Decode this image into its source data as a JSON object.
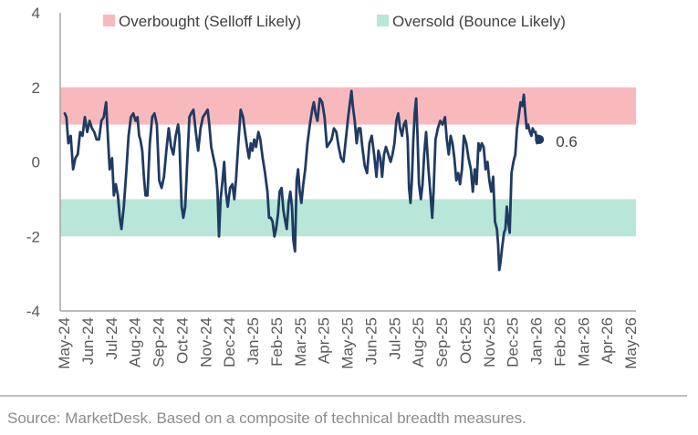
{
  "chart_data": {
    "type": "line",
    "title": "",
    "xlabel": "",
    "ylabel": "",
    "ylim": [
      -4,
      4
    ],
    "yticks": [
      4,
      2,
      0,
      -2,
      -4
    ],
    "x_categories": [
      "May-24",
      "Jun-24",
      "Jul-24",
      "Aug-24",
      "Sep-24",
      "Oct-24",
      "Nov-24",
      "Dec-24",
      "Jan-25",
      "Feb-25",
      "Mar-25",
      "Apr-25",
      "May-25",
      "Jun-25",
      "Jul-25",
      "Aug-25",
      "Sep-25",
      "Oct-25",
      "Nov-25",
      "Dec-25",
      "Jan-26",
      "Feb-26",
      "Mar-26",
      "Apr-26",
      "May-26"
    ],
    "bands": [
      {
        "name": "Overbought (Selloff Likely)",
        "from": 1,
        "to": 2,
        "color": "#f8b9bd"
      },
      {
        "name": "Oversold (Bounce Likely)",
        "from": -2,
        "to": -1,
        "color": "#b8e6d9"
      }
    ],
    "legend_position": "top",
    "series_color": "#1f3b63",
    "end_value_label": "0.6",
    "series": [
      {
        "values": [
          [
            0.0,
            1.3
          ],
          [
            0.07,
            1.2
          ],
          [
            0.15,
            0.5
          ],
          [
            0.25,
            0.7
          ],
          [
            0.35,
            -0.2
          ],
          [
            0.45,
            0.1
          ],
          [
            0.55,
            0.2
          ],
          [
            0.65,
            0.8
          ],
          [
            0.75,
            0.7
          ],
          [
            0.85,
            1.2
          ],
          [
            0.95,
            0.8
          ],
          [
            1.05,
            1.1
          ],
          [
            1.15,
            0.9
          ],
          [
            1.25,
            0.8
          ],
          [
            1.35,
            0.6
          ],
          [
            1.45,
            0.6
          ],
          [
            1.55,
            1.1
          ],
          [
            1.65,
            1.2
          ],
          [
            1.75,
            1.6
          ],
          [
            1.83,
            0.6
          ],
          [
            1.9,
            -0.2
          ],
          [
            2.0,
            0.1
          ],
          [
            2.08,
            -0.9
          ],
          [
            2.16,
            -0.6
          ],
          [
            2.25,
            -0.9
          ],
          [
            2.33,
            -1.5
          ],
          [
            2.4,
            -1.8
          ],
          [
            2.5,
            -1.2
          ],
          [
            2.6,
            -0.3
          ],
          [
            2.7,
            0.7
          ],
          [
            2.8,
            1.2
          ],
          [
            2.9,
            1.3
          ],
          [
            3.0,
            1.1
          ],
          [
            3.08,
            1.2
          ],
          [
            3.15,
            0.7
          ],
          [
            3.2,
            0.6
          ],
          [
            3.28,
            0.3
          ],
          [
            3.35,
            -0.4
          ],
          [
            3.42,
            -0.9
          ],
          [
            3.5,
            -0.9
          ],
          [
            3.6,
            0.5
          ],
          [
            3.7,
            1.2
          ],
          [
            3.8,
            1.3
          ],
          [
            3.9,
            1.0
          ],
          [
            4.0,
            -0.5
          ],
          [
            4.1,
            -0.7
          ],
          [
            4.2,
            -0.4
          ],
          [
            4.3,
            0.3
          ],
          [
            4.4,
            0.9
          ],
          [
            4.5,
            0.4
          ],
          [
            4.6,
            0.2
          ],
          [
            4.7,
            0.7
          ],
          [
            4.8,
            1.0
          ],
          [
            4.85,
            0.7
          ],
          [
            4.9,
            -0.3
          ],
          [
            4.95,
            -1.2
          ],
          [
            5.02,
            -1.5
          ],
          [
            5.1,
            -1.2
          ],
          [
            5.2,
            0.2
          ],
          [
            5.28,
            1.2
          ],
          [
            5.35,
            1.3
          ],
          [
            5.45,
            1.4
          ],
          [
            5.55,
            0.8
          ],
          [
            5.65,
            0.3
          ],
          [
            5.75,
            0.9
          ],
          [
            5.85,
            1.2
          ],
          [
            5.95,
            1.3
          ],
          [
            6.05,
            1.4
          ],
          [
            6.12,
            1.0
          ],
          [
            6.2,
            0.4
          ],
          [
            6.3,
            0.1
          ],
          [
            6.4,
            -0.2
          ],
          [
            6.47,
            -0.8
          ],
          [
            6.53,
            -2.0
          ],
          [
            6.6,
            -1.0
          ],
          [
            6.68,
            -0.5
          ],
          [
            6.75,
            0.0
          ],
          [
            6.82,
            -0.8
          ],
          [
            6.9,
            -1.2
          ],
          [
            7.0,
            -0.7
          ],
          [
            7.1,
            -0.6
          ],
          [
            7.18,
            -1.0
          ],
          [
            7.25,
            -0.5
          ],
          [
            7.35,
            0.5
          ],
          [
            7.45,
            1.4
          ],
          [
            7.55,
            1.2
          ],
          [
            7.65,
            0.7
          ],
          [
            7.72,
            0.4
          ],
          [
            7.8,
            0.1
          ],
          [
            7.88,
            0.5
          ],
          [
            7.95,
            0.3
          ],
          [
            8.02,
            0.6
          ],
          [
            8.1,
            0.4
          ],
          [
            8.2,
            0.8
          ],
          [
            8.28,
            0.6
          ],
          [
            8.38,
            0.1
          ],
          [
            8.48,
            -0.3
          ],
          [
            8.58,
            -0.8
          ],
          [
            8.65,
            -1.5
          ],
          [
            8.72,
            -1.5
          ],
          [
            8.8,
            -1.6
          ],
          [
            8.88,
            -2.0
          ],
          [
            8.95,
            -1.8
          ],
          [
            9.03,
            -1.4
          ],
          [
            9.1,
            -0.8
          ],
          [
            9.18,
            -0.7
          ],
          [
            9.26,
            -1.3
          ],
          [
            9.34,
            -1.6
          ],
          [
            9.4,
            -1.8
          ],
          [
            9.48,
            -1.1
          ],
          [
            9.55,
            -0.8
          ],
          [
            9.62,
            -1.2
          ],
          [
            9.68,
            -2.1
          ],
          [
            9.75,
            -2.4
          ],
          [
            9.82,
            -0.5
          ],
          [
            9.88,
            -0.2
          ],
          [
            9.95,
            -0.8
          ],
          [
            10.02,
            -1.1
          ],
          [
            10.1,
            -0.6
          ],
          [
            10.18,
            -0.2
          ],
          [
            10.28,
            0.5
          ],
          [
            10.38,
            1.0
          ],
          [
            10.48,
            1.4
          ],
          [
            10.55,
            1.6
          ],
          [
            10.62,
            1.3
          ],
          [
            10.7,
            1.1
          ],
          [
            10.8,
            1.7
          ],
          [
            10.9,
            1.6
          ],
          [
            11.0,
            1.2
          ],
          [
            11.1,
            0.4
          ],
          [
            11.2,
            0.5
          ],
          [
            11.3,
            0.6
          ],
          [
            11.4,
            0.9
          ],
          [
            11.5,
            0.8
          ],
          [
            11.6,
            0.4
          ],
          [
            11.7,
            0.1
          ],
          [
            11.8,
            0.0
          ],
          [
            11.9,
            0.6
          ],
          [
            12.0,
            1.2
          ],
          [
            12.08,
            1.6
          ],
          [
            12.14,
            1.9
          ],
          [
            12.2,
            1.5
          ],
          [
            12.28,
            1.1
          ],
          [
            12.36,
            0.5
          ],
          [
            12.44,
            0.9
          ],
          [
            12.52,
            0.9
          ],
          [
            12.6,
            0.4
          ],
          [
            12.7,
            -0.1
          ],
          [
            12.8,
            -0.3
          ],
          [
            12.9,
            0.5
          ],
          [
            13.0,
            0.7
          ],
          [
            13.1,
            0.2
          ],
          [
            13.2,
            -0.4
          ],
          [
            13.28,
            0.3
          ],
          [
            13.36,
            0.1
          ],
          [
            13.44,
            -0.4
          ],
          [
            13.52,
            0.2
          ],
          [
            13.6,
            0.4
          ],
          [
            13.7,
            0.2
          ],
          [
            13.8,
            0.0
          ],
          [
            13.88,
            0.2
          ],
          [
            13.96,
            0.5
          ],
          [
            14.04,
            1.1
          ],
          [
            14.12,
            1.3
          ],
          [
            14.2,
            0.9
          ],
          [
            14.28,
            0.7
          ],
          [
            14.36,
            1.0
          ],
          [
            14.44,
            1.1
          ],
          [
            14.52,
            0.6
          ],
          [
            14.58,
            -0.7
          ],
          [
            14.64,
            -1.1
          ],
          [
            14.7,
            -0.5
          ],
          [
            14.76,
            0.6
          ],
          [
            14.82,
            1.3
          ],
          [
            14.88,
            1.7
          ],
          [
            14.94,
            0.7
          ],
          [
            15.0,
            -0.6
          ],
          [
            15.08,
            -1.0
          ],
          [
            15.15,
            -0.6
          ],
          [
            15.22,
            0.2
          ],
          [
            15.3,
            0.8
          ],
          [
            15.4,
            -0.2
          ],
          [
            15.48,
            -0.8
          ],
          [
            15.56,
            -1.5
          ],
          [
            15.62,
            -0.8
          ],
          [
            15.7,
            0.6
          ],
          [
            15.8,
            0.9
          ],
          [
            15.9,
            1.1
          ],
          [
            16.0,
            1.0
          ],
          [
            16.1,
            1.2
          ],
          [
            16.18,
            0.6
          ],
          [
            16.26,
            0.2
          ],
          [
            16.34,
            0.7
          ],
          [
            16.42,
            0.5
          ],
          [
            16.5,
            0.1
          ],
          [
            16.58,
            -0.5
          ],
          [
            16.66,
            -0.3
          ],
          [
            16.74,
            -0.6
          ],
          [
            16.82,
            -0.2
          ],
          [
            16.9,
            0.7
          ],
          [
            17.0,
            0.5
          ],
          [
            17.1,
            0.1
          ],
          [
            17.2,
            -0.2
          ],
          [
            17.28,
            -0.8
          ],
          [
            17.36,
            -0.2
          ],
          [
            17.44,
            -0.6
          ],
          [
            17.52,
            0.5
          ],
          [
            17.58,
            0.3
          ],
          [
            17.66,
            0.5
          ],
          [
            17.74,
            0.4
          ],
          [
            17.82,
            -0.2
          ],
          [
            17.9,
            0.0
          ],
          [
            17.98,
            -0.5
          ],
          [
            18.06,
            -0.8
          ],
          [
            18.14,
            -0.4
          ],
          [
            18.22,
            -1.6
          ],
          [
            18.3,
            -1.8
          ],
          [
            18.35,
            -2.2
          ],
          [
            18.4,
            -2.9
          ],
          [
            18.45,
            -2.7
          ],
          [
            18.52,
            -2.3
          ],
          [
            18.6,
            -1.9
          ],
          [
            18.66,
            -1.8
          ],
          [
            18.72,
            -1.2
          ],
          [
            18.78,
            -1.6
          ],
          [
            18.84,
            -1.9
          ],
          [
            18.92,
            -0.3
          ],
          [
            19.0,
            0.0
          ],
          [
            19.08,
            0.2
          ],
          [
            19.15,
            0.9
          ],
          [
            19.22,
            1.2
          ],
          [
            19.3,
            1.6
          ],
          [
            19.38,
            1.5
          ],
          [
            19.44,
            1.8
          ],
          [
            19.5,
            1.3
          ],
          [
            19.56,
            0.9
          ],
          [
            19.62,
            1.0
          ],
          [
            19.7,
            0.8
          ],
          [
            19.76,
            0.7
          ],
          [
            19.82,
            0.9
          ],
          [
            19.88,
            0.8
          ],
          [
            19.94,
            0.8
          ],
          [
            20.0,
            0.5
          ],
          [
            20.05,
            0.7
          ],
          [
            20.1,
            0.6
          ]
        ]
      }
    ]
  },
  "source_text": "Source: MarketDesk. Based on a composite of technical breadth measures."
}
